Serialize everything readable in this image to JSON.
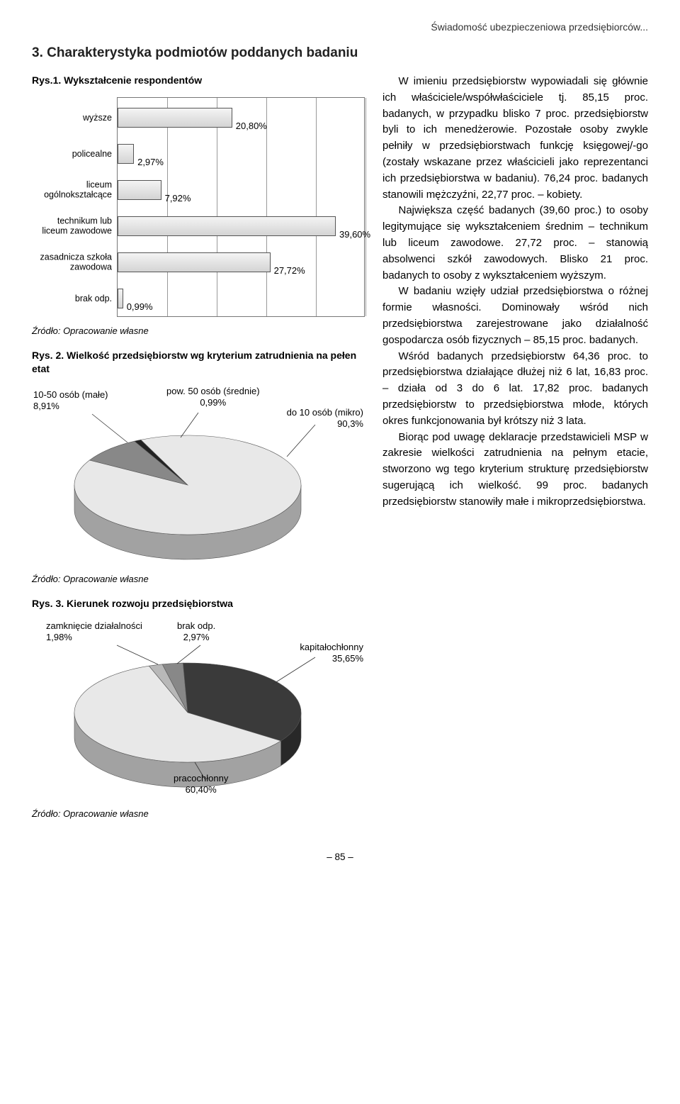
{
  "topHeader": "Świadomość ubezpieczeniowa przedsiębiorców...",
  "sectionTitle": "3. Charakterystyka podmiotów poddanych badaniu",
  "fig1": {
    "title": "Rys.1. Wykształcenie respondentów",
    "bars": [
      {
        "label": "wyższe",
        "value": 20.8,
        "valueText": "20,80%"
      },
      {
        "label": "policealne",
        "value": 2.97,
        "valueText": "2,97%"
      },
      {
        "label": "liceum ogólnokształcące",
        "value": 7.92,
        "valueText": "7,92%"
      },
      {
        "label": "technikum lub liceum zawodowe",
        "value": 39.6,
        "valueText": "39,60%"
      },
      {
        "label": "zasadnicza szkoła zawodowa",
        "value": 27.72,
        "valueText": "27,72%"
      },
      {
        "label": "brak odp.",
        "value": 0.99,
        "valueText": "0,99%"
      }
    ],
    "xmax": 45,
    "gridStep": 9,
    "barFill": "#e4e4e4",
    "barStroke": "#555555",
    "gridColor": "#999999"
  },
  "source": "Źródło: Opracowanie własne",
  "fig2": {
    "title": "Rys. 2. Wielkość przedsiębiorstw wg kryterium zatrudnienia na pełen etat",
    "labels": {
      "small": "10-50 osób (małe)\n8,91%",
      "medium": "pow. 50 osób (średnie)\n0,99%",
      "micro": "do 10 osób (mikro)\n90,3%"
    },
    "slices": [
      {
        "name": "micro",
        "value": 90.3,
        "color": "#e8e8e8"
      },
      {
        "name": "small",
        "value": 8.91,
        "color": "#888888"
      },
      {
        "name": "medium",
        "value": 0.99,
        "color": "#222222"
      }
    ]
  },
  "fig3": {
    "title": "Rys. 3. Kierunek rozwoju przedsiębiorstwa",
    "labels": {
      "close": "zamknięcie działalności\n1,98%",
      "noresp": "brak odp.\n2,97%",
      "capital": "kapitałochłonny\n35,65%",
      "labor": "pracochłonny\n60,40%"
    },
    "slices": [
      {
        "name": "labor",
        "value": 60.4,
        "color": "#e8e8e8"
      },
      {
        "name": "capital",
        "value": 35.65,
        "color": "#3a3a3a"
      },
      {
        "name": "noresp",
        "value": 2.97,
        "color": "#888888"
      },
      {
        "name": "close",
        "value": 1.98,
        "color": "#b8b8b8"
      }
    ]
  },
  "bodyParagraphs": [
    "W imieniu przedsiębiorstw wypowiadali się głównie ich właściciele/współwłaściciele tj. 85,15 proc. badanych, w przypadku blisko 7 proc. przedsiębiorstw byli to ich menedżerowie. Pozostałe osoby zwykle pełniły w przedsiębiorstwach funkcję księgowej/-go (zostały wskazane przez właścicieli jako reprezentanci ich przedsiębiorstwa w badaniu). 76,24 proc. badanych stanowili mężczyźni, 22,77 proc. – kobiety.",
    "Największa część badanych (39,60 proc.) to osoby legitymujące się wykształceniem średnim – technikum lub liceum zawodowe. 27,72 proc. – stanowią absolwenci szkół zawodowych. Blisko 21 proc. badanych to osoby z wykształceniem wyższym.",
    "W badaniu wzięły udział przedsiębiorstwa o różnej formie własności. Dominowały wśród nich przedsiębiorstwa zarejestrowane jako działalność gospodarcza osób fizycznych – 85,15 proc. badanych.",
    "Wśród badanych przedsiębiorstw 64,36 proc. to przedsiębiorstwa działające dłużej niż 6 lat, 16,83 proc. – działa od 3 do 6 lat. 17,82 proc. badanych przedsiębiorstw to przedsiębiorstwa młode, których okres funkcjonowania był krótszy niż 3 lata.",
    "Biorąc pod uwagę deklaracje przedstawicieli MSP w zakresie wielkości zatrudnienia na pełnym etacie, stworzono wg tego kryterium strukturę przedsiębiorstw sugerującą ich wielkość. 99 proc. badanych przedsiębiorstw stanowiły małe i mikroprzedsiębiorstwa."
  ],
  "pageNum": "– 85 –"
}
